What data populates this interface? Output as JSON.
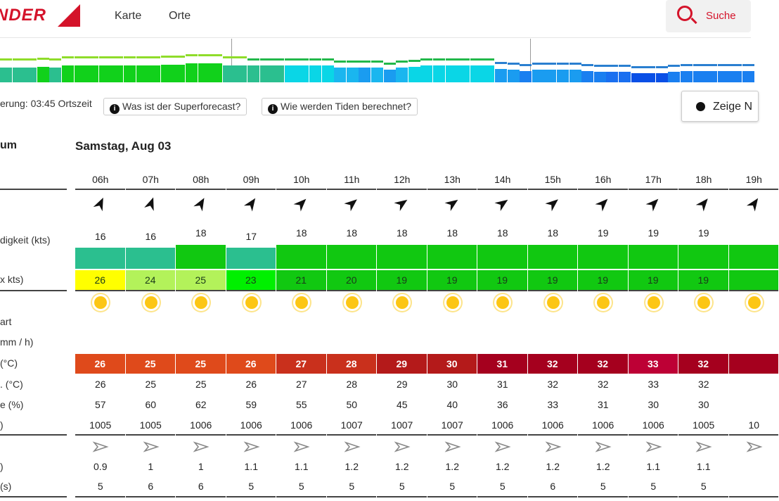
{
  "header": {
    "logo": "NDER",
    "nav": [
      "Karte",
      "Orte"
    ],
    "search_label": "Suche"
  },
  "overview": {
    "bars": [
      [
        "#2bbf8f",
        0.7
      ],
      [
        "#2bbf8f",
        0.7
      ],
      [
        "#2bbf8f",
        0.7
      ],
      [
        "#11d11b",
        0.75
      ],
      [
        "#2bbf8f",
        0.7
      ],
      [
        "#11d11b",
        0.8
      ],
      [
        "#11d11b",
        0.8
      ],
      [
        "#11d11b",
        0.8
      ],
      [
        "#11d11b",
        0.8
      ],
      [
        "#11d11b",
        0.8
      ],
      [
        "#11d11b",
        0.8
      ],
      [
        "#11d11b",
        0.8
      ],
      [
        "#11d11b",
        0.8
      ],
      [
        "#11d11b",
        0.85
      ],
      [
        "#11d11b",
        0.85
      ],
      [
        "#11d11b",
        0.9
      ],
      [
        "#11d11b",
        0.9
      ],
      [
        "#11d11b",
        0.9
      ],
      [
        "#2bbf8f",
        0.8
      ],
      [
        "#2bbf8f",
        0.8
      ],
      [
        "#2bbf8f",
        0.8
      ],
      [
        "#2bbf8f",
        0.8
      ],
      [
        "#2bbf8f",
        0.8
      ],
      [
        "#0ad6e6",
        0.8
      ],
      [
        "#0ad6e6",
        0.8
      ],
      [
        "#0ad6e6",
        0.8
      ],
      [
        "#0ad6e6",
        0.8
      ],
      [
        "#1ab6ef",
        0.7
      ],
      [
        "#1ab6ef",
        0.7
      ],
      [
        "#1a9cf0",
        0.7
      ],
      [
        "#1ab6ef",
        0.7
      ],
      [
        "#1a9cf0",
        0.6
      ],
      [
        "#1ab6ef",
        0.7
      ],
      [
        "#0ad6e6",
        0.75
      ],
      [
        "#0ad6e6",
        0.8
      ],
      [
        "#0ad6e6",
        0.8
      ],
      [
        "#0ad6e6",
        0.8
      ],
      [
        "#0ad6e6",
        0.8
      ],
      [
        "#0ad6e6",
        0.8
      ],
      [
        "#0ad6e6",
        0.8
      ],
      [
        "#1a9cf0",
        0.65
      ],
      [
        "#1a9cf0",
        0.6
      ],
      [
        "#1a7ff0",
        0.55
      ],
      [
        "#1a9cf0",
        0.6
      ],
      [
        "#1a9cf0",
        0.6
      ],
      [
        "#1a9cf0",
        0.6
      ],
      [
        "#1a9cf0",
        0.6
      ],
      [
        "#1a7ff0",
        0.55
      ],
      [
        "#1a7ff0",
        0.5
      ],
      [
        "#1a6ff0",
        0.5
      ],
      [
        "#1a6ff0",
        0.5
      ],
      [
        "#0a4fe6",
        0.45
      ],
      [
        "#0a4fe6",
        0.45
      ],
      [
        "#0a4fe6",
        0.45
      ],
      [
        "#1a7ff0",
        0.5
      ],
      [
        "#1a7ff0",
        0.55
      ],
      [
        "#1a7ff0",
        0.55
      ],
      [
        "#1a7ff0",
        0.55
      ],
      [
        "#1a7ff0",
        0.55
      ],
      [
        "#1a7ff0",
        0.55
      ],
      [
        "#1a7ff0",
        0.55
      ]
    ]
  },
  "info": {
    "update": "erung: 03:45 Ortszeit",
    "btn1": "Was ist der Superforecast?",
    "btn2": "Wie werden Tiden berechnet?",
    "night": "Zeige N"
  },
  "labels": {
    "datum": "um",
    "speed": "digkeit (kts)",
    "gust": "x kts)",
    "weather": "art",
    "rain": "mm / h)",
    "temp": "(°C)",
    "felt": ". (°C)",
    "humidity": "e (%)",
    "pressure": ")",
    "wave_height": ")",
    "wave_period": "(s)"
  },
  "day": "Samstag, Aug 03",
  "hours": [
    "06h",
    "07h",
    "08h",
    "09h",
    "10h",
    "11h",
    "12h",
    "13h",
    "14h",
    "15h",
    "16h",
    "17h",
    "18h",
    "19h"
  ],
  "wind_dir": [
    205,
    200,
    210,
    215,
    225,
    230,
    235,
    235,
    235,
    230,
    225,
    225,
    220,
    215
  ],
  "wind_speed": [
    "16",
    "16",
    "18",
    "17",
    "18",
    "18",
    "18",
    "18",
    "18",
    "18",
    "19",
    "19",
    "19",
    ""
  ],
  "wind_color": [
    "#2bbf8f",
    "#2bbf8f",
    "#11c811",
    "#2bbf8f",
    "#11c811",
    "#11c811",
    "#11c811",
    "#11c811",
    "#11c811",
    "#11c811",
    "#11c811",
    "#11c811",
    "#11c811",
    "#11c811"
  ],
  "gust": [
    "26",
    "24",
    "25",
    "23",
    "21",
    "20",
    "19",
    "19",
    "19",
    "19",
    "19",
    "19",
    "19",
    ""
  ],
  "gust_color": [
    "#ffff00",
    "#b3f25a",
    "#b3f25a",
    "#00f000",
    "#11c811",
    "#11c811",
    "#11c811",
    "#11c811",
    "#11c811",
    "#11c811",
    "#11c811",
    "#11c811",
    "#11c811",
    "#11c811"
  ],
  "temp": [
    "26",
    "25",
    "25",
    "26",
    "27",
    "28",
    "29",
    "30",
    "31",
    "32",
    "32",
    "33",
    "32",
    ""
  ],
  "temp_color": [
    "#df4a1b",
    "#df4a1b",
    "#df4a1b",
    "#df4a1b",
    "#c9301c",
    "#c9301c",
    "#b41a1a",
    "#b41a1a",
    "#a5001e",
    "#a5001e",
    "#a5001e",
    "#bd0035",
    "#a5001e",
    "#a5001e"
  ],
  "felt": [
    "26",
    "25",
    "25",
    "26",
    "27",
    "28",
    "29",
    "30",
    "31",
    "32",
    "32",
    "33",
    "32",
    ""
  ],
  "humidity": [
    "57",
    "60",
    "62",
    "59",
    "55",
    "50",
    "45",
    "40",
    "36",
    "33",
    "31",
    "30",
    "30",
    ""
  ],
  "pressure": [
    "1005",
    "1005",
    "1006",
    "1006",
    "1006",
    "1007",
    "1007",
    "1007",
    "1006",
    "1006",
    "1006",
    "1006",
    "1005",
    "10"
  ],
  "wave_height": [
    "0.9",
    "1",
    "1",
    "1.1",
    "1.1",
    "1.2",
    "1.2",
    "1.2",
    "1.2",
    "1.2",
    "1.2",
    "1.1",
    "1.1",
    ""
  ],
  "wave_period": [
    "5",
    "6",
    "6",
    "5",
    "5",
    "5",
    "5",
    "5",
    "5",
    "6",
    "5",
    "5",
    "5",
    ""
  ]
}
